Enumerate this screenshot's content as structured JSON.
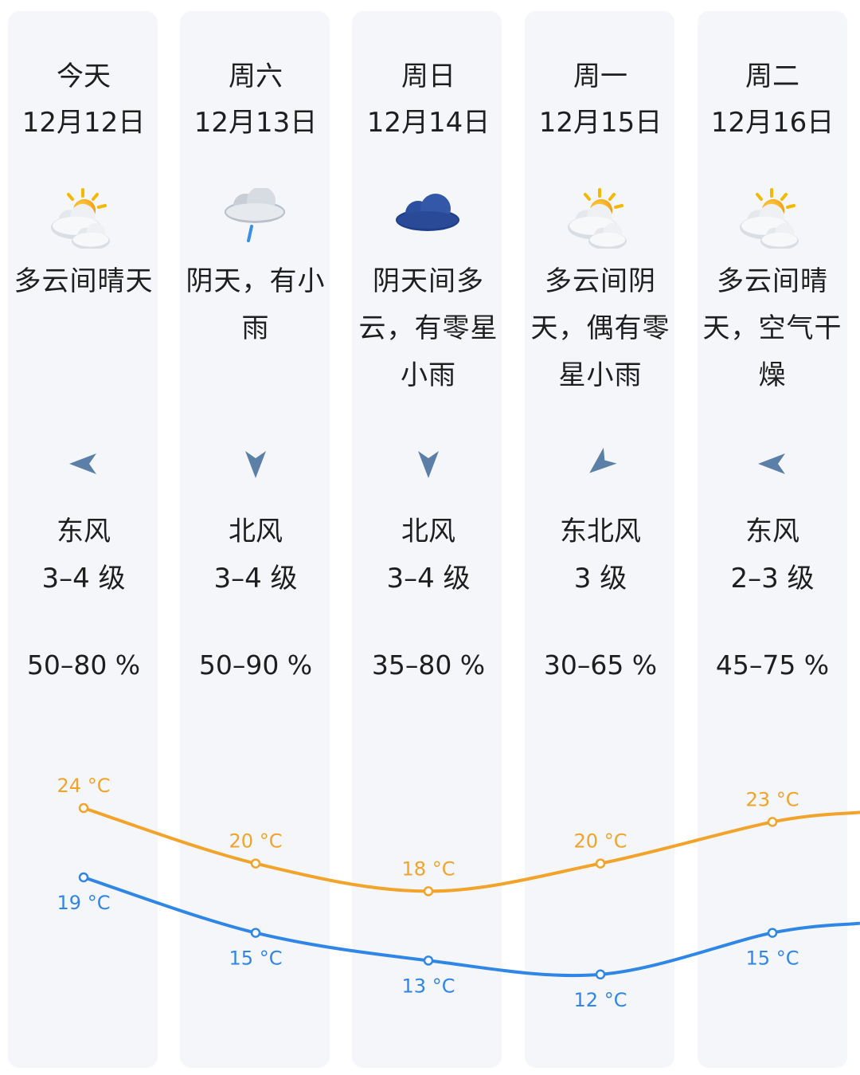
{
  "colors": {
    "high": "#f2a32a",
    "low": "#2f86e6",
    "column_bg": "#f4f6fa",
    "arrow": "#5b7fa6"
  },
  "days": [
    {
      "day": "今天",
      "date": "12月12日",
      "icon": "partly-cloudy-sun-icon",
      "desc_lines": [
        "多云间晴天"
      ],
      "wind_dir_icon": "arrow-left-icon",
      "wind_name": "东风",
      "wind_level": "3–4 级",
      "humidity": "50–80 %"
    },
    {
      "day": "周六",
      "date": "12月13日",
      "icon": "light-rain-icon",
      "desc_lines": [
        "阴天，有小",
        "雨"
      ],
      "wind_dir_icon": "arrow-down-icon",
      "wind_name": "北风",
      "wind_level": "3–4 级",
      "humidity": "50–90 %"
    },
    {
      "day": "周日",
      "date": "12月14日",
      "icon": "overcast-cloud-icon",
      "desc_lines": [
        "阴天间多",
        "云，有零星",
        "小雨"
      ],
      "wind_dir_icon": "arrow-down-icon",
      "wind_name": "北风",
      "wind_level": "3–4 级",
      "humidity": "35–80 %"
    },
    {
      "day": "周一",
      "date": "12月15日",
      "icon": "partly-cloudy-sun-icon",
      "desc_lines": [
        "多云间阴",
        "天，偶有零",
        "星小雨"
      ],
      "wind_dir_icon": "arrow-down-left-icon",
      "wind_name": "东北风",
      "wind_level": "3 级",
      "humidity": "30–65 %"
    },
    {
      "day": "周二",
      "date": "12月16日",
      "icon": "partly-cloudy-sun-icon",
      "desc_lines": [
        "多云间晴",
        "天，空气干",
        "燥"
      ],
      "wind_dir_icon": "arrow-left-icon",
      "wind_name": "东风",
      "wind_level": "2–3 级",
      "humidity": "45–75 %"
    }
  ],
  "chart_data": {
    "type": "line",
    "categories": [
      "今天",
      "周六",
      "周日",
      "周一",
      "周二"
    ],
    "series": [
      {
        "values": [
          24,
          20,
          18,
          20,
          23
        ],
        "labels": [
          "24 °C",
          "20 °C",
          "18 °C",
          "20 °C",
          "23 °C"
        ]
      },
      {
        "values": [
          19,
          15,
          13,
          12,
          15
        ],
        "labels": [
          "19 °C",
          "15 °C",
          "13 °C",
          "12 °C",
          "15 °C"
        ]
      }
    ]
  }
}
